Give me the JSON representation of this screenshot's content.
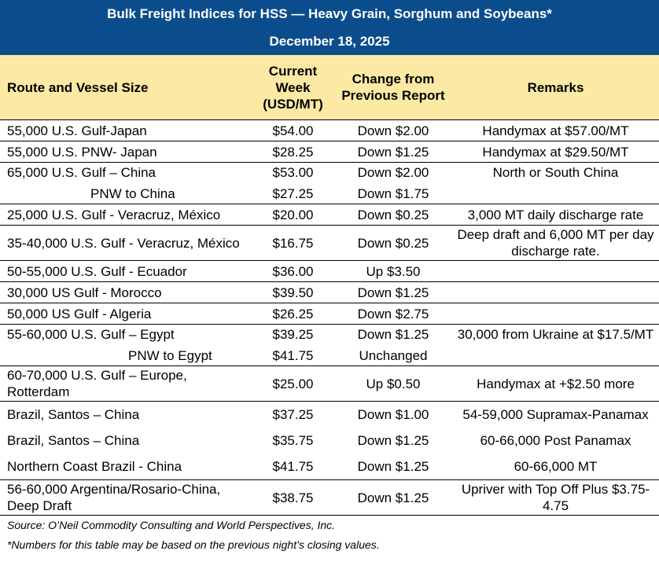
{
  "title": "Bulk Freight Indices for HSS — Heavy Grain, Sorghum and Soybeans*",
  "date": "December 18, 2025",
  "columns": [
    "Route and Vessel Size",
    "Current Week (USD/MT)",
    "Change from Previous Report",
    "Remarks"
  ],
  "groups": [
    {
      "rows": [
        [
          "55,000 U.S. Gulf-Japan",
          "$54.00",
          "Down $2.00",
          "Handymax at $57.00/MT"
        ]
      ]
    },
    {
      "rows": [
        [
          "55,000 U.S. PNW- Japan",
          "$28.25",
          "Down $1.25",
          "Handymax at $29.50/MT"
        ]
      ]
    },
    {
      "rows": [
        [
          "65,000 U.S. Gulf – China",
          "$53.00",
          "Down $2.00",
          "North or South China"
        ],
        [
          "PNW to China",
          "$27.25",
          "Down $1.75",
          null
        ]
      ]
    },
    {
      "rows": [
        [
          "25,000 U.S. Gulf - Veracruz, México",
          "$20.00",
          "Down $0.25",
          "3,000 MT daily discharge rate"
        ]
      ]
    },
    {
      "rows": [
        [
          "35-40,000 U.S. Gulf - Veracruz, México",
          "$16.75",
          "Down $0.25",
          "Deep draft and 6,000 MT per day discharge rate."
        ]
      ]
    },
    {
      "rows": [
        [
          "50-55,000 U.S. Gulf - Ecuador",
          "$36.00",
          "Up $3.50",
          null
        ]
      ]
    },
    {
      "rows": [
        [
          "30,000 US Gulf - Morocco",
          "$39.50",
          "Down $1.25",
          null
        ]
      ]
    },
    {
      "rows": [
        [
          "50,000 US Gulf - Algeria",
          "$26.25",
          "Down $2.75",
          null
        ]
      ]
    },
    {
      "rows": [
        [
          "55-60,000 U.S. Gulf – Egypt",
          "$39.25",
          "Down $1.25",
          "30,000 from Ukraine at $17.5/MT"
        ],
        [
          "PNW to Egypt",
          "$41.75",
          "Unchanged",
          null
        ]
      ]
    },
    {
      "rows": [
        [
          "60-70,000 U.S. Gulf – Europe, Rotterdam",
          "$25.00",
          "Up $0.50",
          "Handymax at +$2.50 more"
        ]
      ]
    },
    {
      "rows": [
        [
          "Brazil, Santos – China",
          "$37.25",
          "Down $1.00",
          "54-59,000 Supramax-Panamax"
        ],
        [
          "Brazil, Santos – China",
          "$35.75",
          "Down $1.25",
          "60-66,000  Post Panamax"
        ],
        [
          "Northern Coast Brazil - China",
          "$41.75",
          "Down $1.25",
          "60-66,000 MT"
        ]
      ]
    },
    {
      "rows": [
        [
          "56-60,000 Argentina/Rosario-China, Deep Draft",
          "$38.75",
          "Down $1.25",
          "Upriver with Top Off Plus $3.75-4.75"
        ]
      ]
    }
  ],
  "source": "Source: O’Neil Commodity Consulting and World Perspectives, Inc.",
  "note": "*Numbers for this table may be based on the previous night’s closing values."
}
